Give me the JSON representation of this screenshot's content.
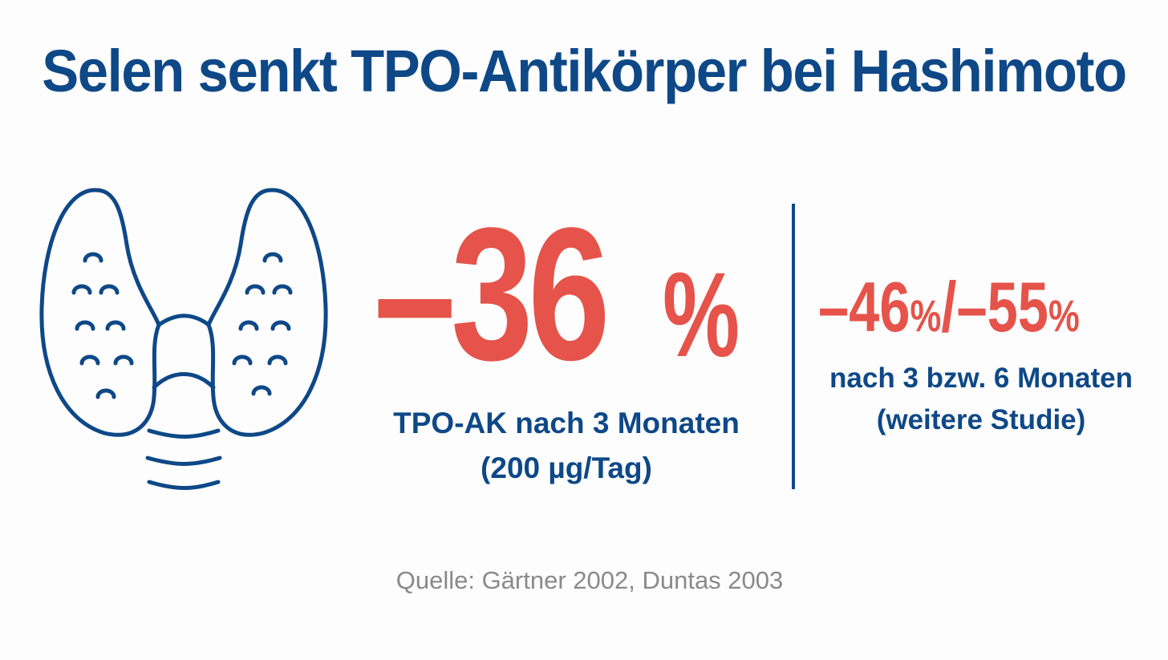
{
  "title": "Selen senkt TPO-Antikörper bei Hashimoto",
  "illustration": {
    "icon": "thyroid-icon",
    "color": "#0e4887"
  },
  "main_stat": {
    "value": "–36",
    "unit": "%",
    "caption_line1": "TPO-AK nach 3 Monaten",
    "caption_line2": "(200 µg/Tag)"
  },
  "side_stat": {
    "value": "–46 % / –55 %",
    "value_a": "–46",
    "unit_a": "%",
    "separator": "/",
    "value_b": "–55",
    "unit_b": "%",
    "caption_line1": "nach 3 bzw. 6 Monaten",
    "caption_line2": "(weitere Studie)"
  },
  "source": "Quelle: Gärtner 2002, Duntas 2003",
  "colors": {
    "primary_blue": "#0e4887",
    "accent_red": "#e5534a",
    "source_gray": "#8a8a8a"
  }
}
